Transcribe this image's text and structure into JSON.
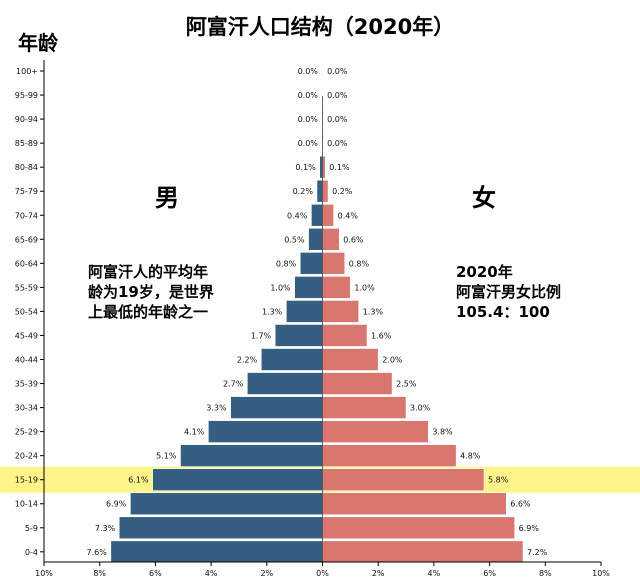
{
  "chart_data": {
    "type": "bar",
    "title": "阿富汗人口结构（2020年）",
    "ylabel": "年龄",
    "categories": [
      "100+",
      "95-99",
      "90-94",
      "85-89",
      "80-84",
      "75-79",
      "70-74",
      "65-69",
      "60-64",
      "55-59",
      "50-54",
      "45-49",
      "40-44",
      "35-39",
      "30-34",
      "25-29",
      "20-24",
      "15-19",
      "10-14",
      "5-9",
      "0-4"
    ],
    "series": [
      {
        "name": "男",
        "values": [
          0.0,
          0.0,
          0.0,
          0.0,
          0.1,
          0.2,
          0.4,
          0.5,
          0.8,
          1.0,
          1.3,
          1.7,
          2.2,
          2.7,
          3.3,
          4.1,
          5.1,
          6.1,
          6.9,
          7.3,
          7.6
        ]
      },
      {
        "name": "女",
        "values": [
          0.0,
          0.0,
          0.0,
          0.0,
          0.1,
          0.2,
          0.4,
          0.6,
          0.8,
          1.0,
          1.3,
          1.6,
          2.0,
          2.5,
          3.0,
          3.8,
          4.8,
          5.8,
          6.6,
          6.9,
          7.2
        ]
      }
    ],
    "data_labels": {
      "male": [
        "0.0%",
        "0.0%",
        "0.0%",
        "0.0%",
        "0.1%",
        "0.2%",
        "0.4%",
        "0.5%",
        "0.8%",
        "1.0%",
        "1.3%",
        "1.7%",
        "2.2%",
        "2.7%",
        "3.3%",
        "4.1%",
        "5.1%",
        "6.1%",
        "6.9%",
        "7.3%",
        "7.6%"
      ],
      "female": [
        "0.0%",
        "0.0%",
        "0.0%",
        "0.0%",
        "0.1%",
        "0.2%",
        "0.4%",
        "0.6%",
        "0.8%",
        "1.0%",
        "1.3%",
        "1.6%",
        "2.0%",
        "2.5%",
        "3.0%",
        "3.8%",
        "4.8%",
        "5.8%",
        "6.6%",
        "6.9%",
        "7.2%"
      ]
    },
    "xlim": [
      -10,
      10
    ],
    "xticks": [
      -10,
      -8,
      -6,
      -4,
      -2,
      0,
      2,
      4,
      6,
      8,
      10
    ],
    "xtick_labels": [
      "10%",
      "8%",
      "6%",
      "4%",
      "2%",
      "0%",
      "2%",
      "4%",
      "6%",
      "8%",
      "10%"
    ],
    "highlight_category": "15-19",
    "colors": {
      "male": "#355f82",
      "female": "#d8766f",
      "highlight": "#fff48a",
      "bar_stroke": "#ffffff"
    },
    "annotations": {
      "male_label": "男",
      "female_label": "女",
      "left_note": [
        "阿富汗人的平均年",
        "龄为19岁，是世界",
        "上最低的年龄之一"
      ],
      "right_note": [
        "2020年",
        "阿富汗男女比例",
        "105.4：100"
      ]
    }
  }
}
